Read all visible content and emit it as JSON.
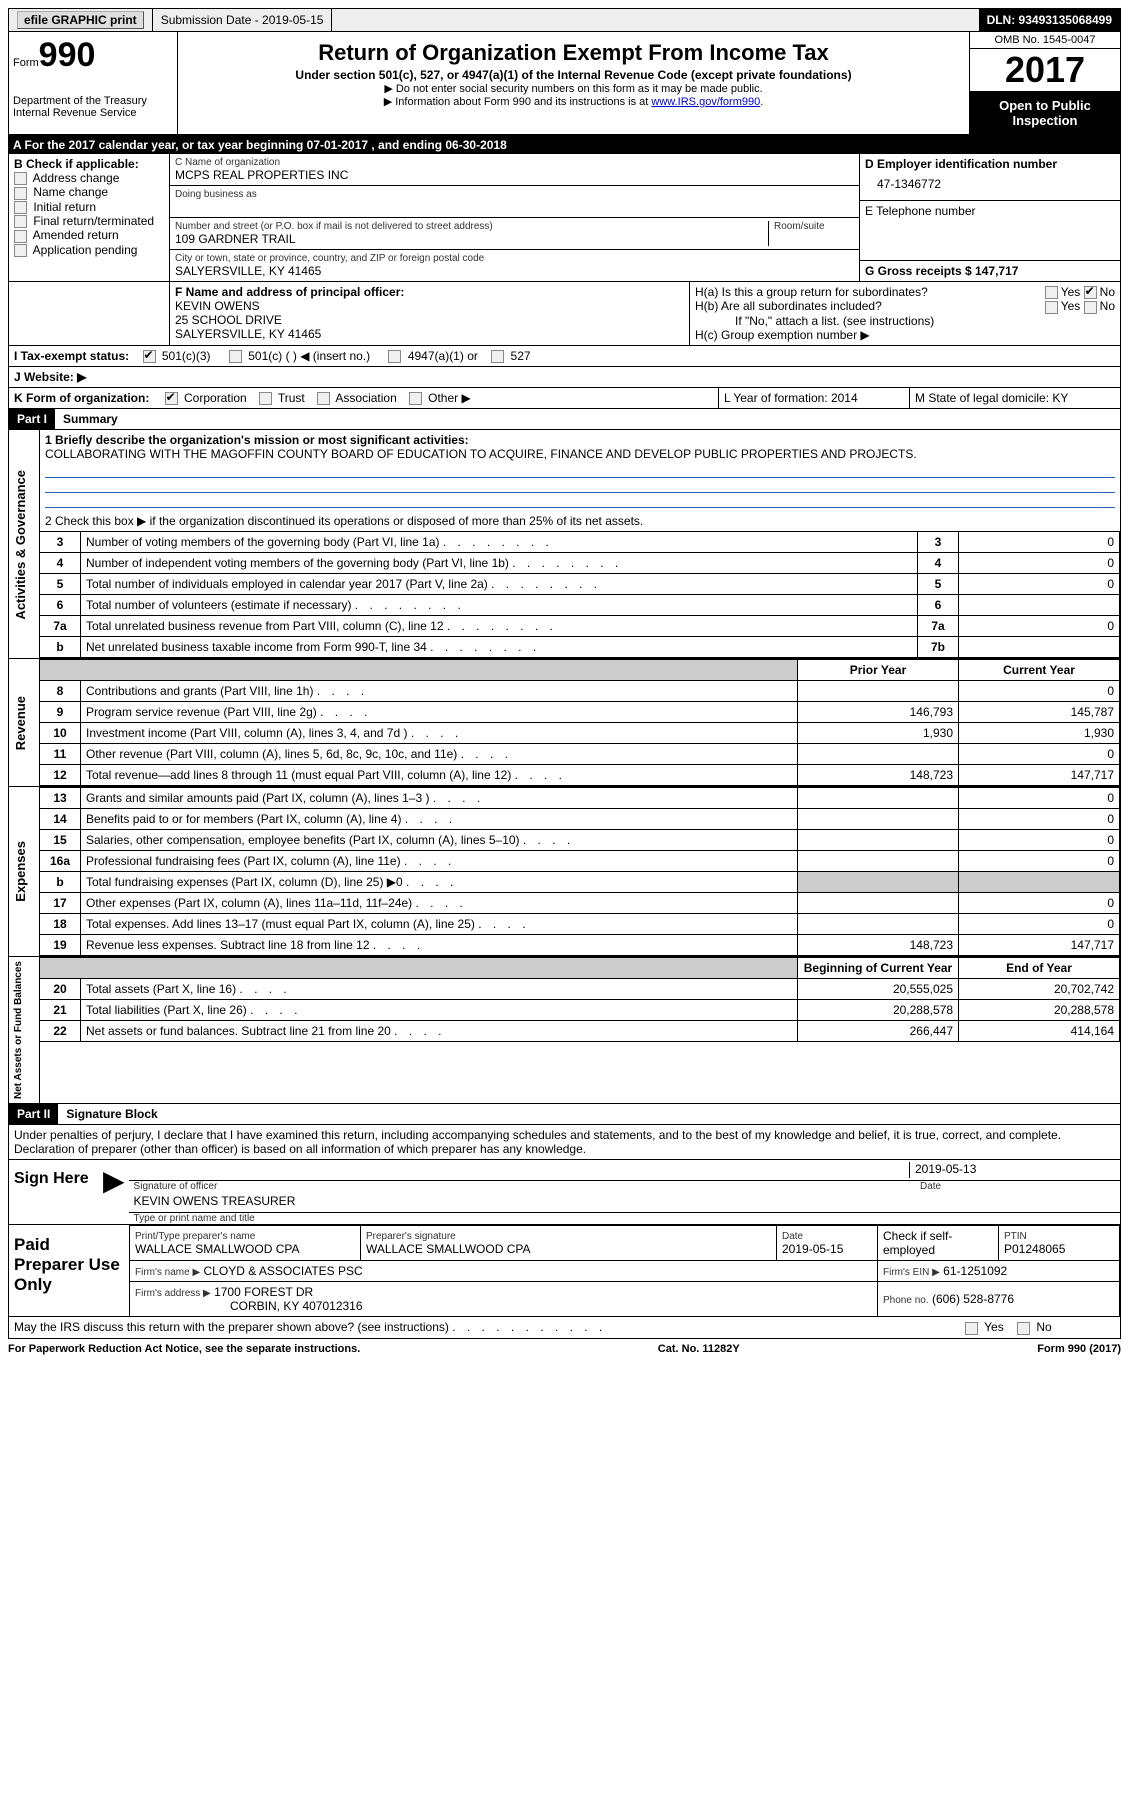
{
  "topbar": {
    "efile": "efile GRAPHIC print",
    "submission": "Submission Date - 2019-05-15",
    "dln": "DLN: 93493135068499"
  },
  "header": {
    "form_prefix": "Form",
    "form_num": "990",
    "dept": "Department of the Treasury",
    "irs": "Internal Revenue Service",
    "title": "Return of Organization Exempt From Income Tax",
    "subtitle": "Under section 501(c), 527, or 4947(a)(1) of the Internal Revenue Code (except private foundations)",
    "note1": "▶ Do not enter social security numbers on this form as it may be made public.",
    "note2_pre": "▶ Information about Form 990 and its instructions is at ",
    "note2_link": "www.IRS.gov/form990",
    "omb": "OMB No. 1545-0047",
    "year": "2017",
    "open": "Open to Public Inspection"
  },
  "sectionA": "A  For the 2017 calendar year, or tax year beginning 07-01-2017   , and ending 06-30-2018",
  "boxB": {
    "title": "B Check if applicable:",
    "items": [
      "Address change",
      "Name change",
      "Initial return",
      "Final return/terminated",
      "Amended return",
      "Application pending"
    ]
  },
  "boxC": {
    "label_name": "C Name of organization",
    "name": "MCPS REAL PROPERTIES INC",
    "dba_label": "Doing business as",
    "addr_label": "Number and street (or P.O. box if mail is not delivered to street address)",
    "room_label": "Room/suite",
    "addr": "109 GARDNER TRAIL",
    "city_label": "City or town, state or province, country, and ZIP or foreign postal code",
    "city": "SALYERSVILLE, KY  41465"
  },
  "boxD": {
    "label": "D Employer identification number",
    "value": "47-1346772"
  },
  "boxE": {
    "label": "E Telephone number"
  },
  "boxG": {
    "label": "G Gross receipts $ 147,717"
  },
  "boxF": {
    "label": "F Name and address of principal officer:",
    "name": "KEVIN OWENS",
    "addr1": "25 SCHOOL DRIVE",
    "addr2": "SALYERSVILLE, KY  41465"
  },
  "boxH": {
    "ha": "H(a)  Is this a group return for subordinates?",
    "hb": "H(b)  Are all subordinates included?",
    "hb_note": "If \"No,\" attach a list. (see instructions)",
    "hc": "H(c)  Group exemption number ▶",
    "yes": "Yes",
    "no": "No"
  },
  "boxI": {
    "label": "I  Tax-exempt status:",
    "opt1": "501(c)(3)",
    "opt2": "501(c) (   ) ◀ (insert no.)",
    "opt3": "4947(a)(1) or",
    "opt4": "527"
  },
  "boxJ": "J  Website: ▶",
  "boxK": {
    "label": "K Form of organization:",
    "opts": [
      "Corporation",
      "Trust",
      "Association",
      "Other ▶"
    ]
  },
  "boxL": "L Year of formation: 2014",
  "boxM": "M State of legal domicile: KY",
  "part1": {
    "header": "Part I",
    "title": "Summary",
    "line1_label": "1  Briefly describe the organization's mission or most significant activities:",
    "line1_text": "COLLABORATING WITH THE MAGOFFIN COUNTY BOARD OF EDUCATION TO ACQUIRE, FINANCE AND DEVELOP PUBLIC PROPERTIES AND PROJECTS.",
    "line2": "2   Check this box ▶        if the organization discontinued its operations or disposed of more than 25% of its net assets.",
    "vlabel_gov": "Activities & Governance",
    "vlabel_rev": "Revenue",
    "vlabel_exp": "Expenses",
    "vlabel_net": "Net Assets or Fund Balances",
    "gov_lines": [
      {
        "n": "3",
        "t": "Number of voting members of the governing body (Part VI, line 1a)",
        "box": "3",
        "v": "0"
      },
      {
        "n": "4",
        "t": "Number of independent voting members of the governing body (Part VI, line 1b)",
        "box": "4",
        "v": "0"
      },
      {
        "n": "5",
        "t": "Total number of individuals employed in calendar year 2017 (Part V, line 2a)",
        "box": "5",
        "v": "0"
      },
      {
        "n": "6",
        "t": "Total number of volunteers (estimate if necessary)",
        "box": "6",
        "v": ""
      },
      {
        "n": "7a",
        "t": "Total unrelated business revenue from Part VIII, column (C), line 12",
        "box": "7a",
        "v": "0"
      },
      {
        "n": "b",
        "t": "Net unrelated business taxable income from Form 990-T, line 34",
        "box": "7b",
        "v": ""
      }
    ],
    "col_prior": "Prior Year",
    "col_current": "Current Year",
    "rev_lines": [
      {
        "n": "8",
        "t": "Contributions and grants (Part VIII, line 1h)",
        "p": "",
        "c": "0"
      },
      {
        "n": "9",
        "t": "Program service revenue (Part VIII, line 2g)",
        "p": "146,793",
        "c": "145,787"
      },
      {
        "n": "10",
        "t": "Investment income (Part VIII, column (A), lines 3, 4, and 7d )",
        "p": "1,930",
        "c": "1,930"
      },
      {
        "n": "11",
        "t": "Other revenue (Part VIII, column (A), lines 5, 6d, 8c, 9c, 10c, and 11e)",
        "p": "",
        "c": "0"
      },
      {
        "n": "12",
        "t": "Total revenue—add lines 8 through 11 (must equal Part VIII, column (A), line 12)",
        "p": "148,723",
        "c": "147,717"
      }
    ],
    "exp_lines": [
      {
        "n": "13",
        "t": "Grants and similar amounts paid (Part IX, column (A), lines 1–3 )",
        "p": "",
        "c": "0"
      },
      {
        "n": "14",
        "t": "Benefits paid to or for members (Part IX, column (A), line 4)",
        "p": "",
        "c": "0"
      },
      {
        "n": "15",
        "t": "Salaries, other compensation, employee benefits (Part IX, column (A), lines 5–10)",
        "p": "",
        "c": "0"
      },
      {
        "n": "16a",
        "t": "Professional fundraising fees (Part IX, column (A), line 11e)",
        "p": "",
        "c": "0"
      },
      {
        "n": "b",
        "t": "Total fundraising expenses (Part IX, column (D), line 25) ▶0",
        "p": "shaded",
        "c": "shaded"
      },
      {
        "n": "17",
        "t": "Other expenses (Part IX, column (A), lines 11a–11d, 11f–24e)",
        "p": "",
        "c": "0"
      },
      {
        "n": "18",
        "t": "Total expenses. Add lines 13–17 (must equal Part IX, column (A), line 25)",
        "p": "",
        "c": "0"
      },
      {
        "n": "19",
        "t": "Revenue less expenses. Subtract line 18 from line 12",
        "p": "148,723",
        "c": "147,717"
      }
    ],
    "col_begin": "Beginning of Current Year",
    "col_end": "End of Year",
    "net_lines": [
      {
        "n": "20",
        "t": "Total assets (Part X, line 16)",
        "p": "20,555,025",
        "c": "20,702,742"
      },
      {
        "n": "21",
        "t": "Total liabilities (Part X, line 26)",
        "p": "20,288,578",
        "c": "20,288,578"
      },
      {
        "n": "22",
        "t": "Net assets or fund balances. Subtract line 21 from line 20",
        "p": "266,447",
        "c": "414,164"
      }
    ]
  },
  "part2": {
    "header": "Part II",
    "title": "Signature Block",
    "decl": "Under penalties of perjury, I declare that I have examined this return, including accompanying schedules and statements, and to the best of my knowledge and belief, it is true, correct, and complete. Declaration of preparer (other than officer) is based on all information of which preparer has any knowledge.",
    "sign_here": "Sign Here",
    "sig_officer": "Signature of officer",
    "sig_date": "2019-05-13",
    "date_label": "Date",
    "officer_name": "KEVIN OWENS TREASURER",
    "type_label": "Type or print name and title",
    "paid": "Paid Preparer Use Only",
    "prep_name_label": "Print/Type preparer's name",
    "prep_name": "WALLACE SMALLWOOD CPA",
    "prep_sig_label": "Preparer's signature",
    "prep_sig": "WALLACE SMALLWOOD CPA",
    "prep_date_label": "Date",
    "prep_date": "2019-05-15",
    "check_self": "Check        if self-employed",
    "ptin_label": "PTIN",
    "ptin": "P01248065",
    "firm_name_label": "Firm's name    ▶",
    "firm_name": "CLOYD & ASSOCIATES PSC",
    "firm_ein_label": "Firm's EIN ▶",
    "firm_ein": "61-1251092",
    "firm_addr_label": "Firm's address ▶",
    "firm_addr": "1700 FOREST DR",
    "firm_city": "CORBIN, KY  407012316",
    "phone_label": "Phone no.",
    "phone": "(606) 528-8776",
    "discuss": "May the IRS discuss this return with the preparer shown above? (see instructions)"
  },
  "footer": {
    "left": "For Paperwork Reduction Act Notice, see the separate instructions.",
    "mid": "Cat. No. 11282Y",
    "right": "Form 990 (2017)"
  }
}
